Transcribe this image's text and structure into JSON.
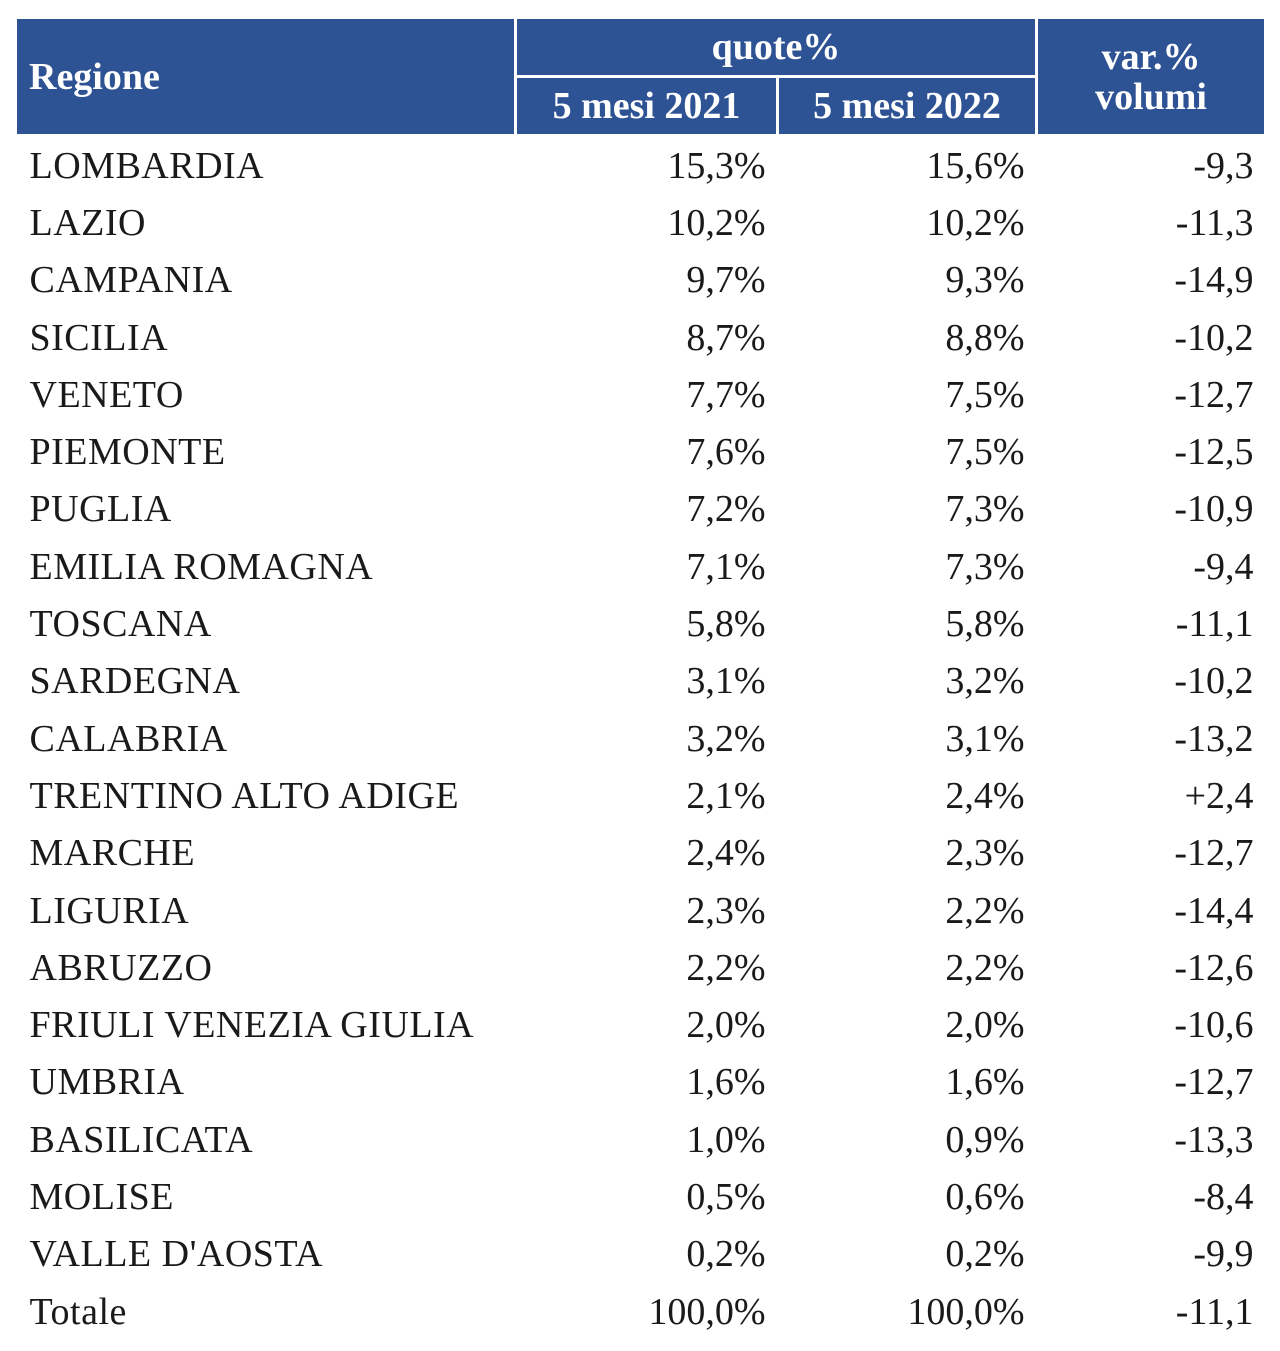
{
  "header": {
    "region_label": "Regione",
    "quote_group_label": "quote%",
    "col_2021_label": "5 mesi 2021",
    "col_2022_label": "5 mesi 2022",
    "var_label_line1": "var.%",
    "var_label_line2": "volumi"
  },
  "colors": {
    "header_background": "#2e5394",
    "header_text": "#ffffff",
    "body_text": "#1a1a1a"
  },
  "rows": [
    {
      "region": "LOMBARDIA",
      "q2021": "15,3%",
      "q2022": "15,6%",
      "var": "-9,3"
    },
    {
      "region": "LAZIO",
      "q2021": "10,2%",
      "q2022": "10,2%",
      "var": "-11,3"
    },
    {
      "region": "CAMPANIA",
      "q2021": "9,7%",
      "q2022": "9,3%",
      "var": "-14,9"
    },
    {
      "region": "SICILIA",
      "q2021": "8,7%",
      "q2022": "8,8%",
      "var": "-10,2"
    },
    {
      "region": "VENETO",
      "q2021": "7,7%",
      "q2022": "7,5%",
      "var": "-12,7"
    },
    {
      "region": "PIEMONTE",
      "q2021": "7,6%",
      "q2022": "7,5%",
      "var": "-12,5"
    },
    {
      "region": "PUGLIA",
      "q2021": "7,2%",
      "q2022": "7,3%",
      "var": "-10,9"
    },
    {
      "region": "EMILIA ROMAGNA",
      "q2021": "7,1%",
      "q2022": "7,3%",
      "var": "-9,4"
    },
    {
      "region": "TOSCANA",
      "q2021": "5,8%",
      "q2022": "5,8%",
      "var": "-11,1"
    },
    {
      "region": "SARDEGNA",
      "q2021": "3,1%",
      "q2022": "3,2%",
      "var": "-10,2"
    },
    {
      "region": "CALABRIA",
      "q2021": "3,2%",
      "q2022": "3,1%",
      "var": "-13,2"
    },
    {
      "region": "TRENTINO ALTO ADIGE",
      "q2021": "2,1%",
      "q2022": "2,4%",
      "var": "+2,4"
    },
    {
      "region": "MARCHE",
      "q2021": "2,4%",
      "q2022": "2,3%",
      "var": "-12,7"
    },
    {
      "region": "LIGURIA",
      "q2021": "2,3%",
      "q2022": "2,2%",
      "var": "-14,4"
    },
    {
      "region": "ABRUZZO",
      "q2021": "2,2%",
      "q2022": "2,2%",
      "var": "-12,6"
    },
    {
      "region": "FRIULI VENEZIA GIULIA",
      "q2021": "2,0%",
      "q2022": "2,0%",
      "var": "-10,6"
    },
    {
      "region": "UMBRIA",
      "q2021": "1,6%",
      "q2022": "1,6%",
      "var": "-12,7"
    },
    {
      "region": "BASILICATA",
      "q2021": "1,0%",
      "q2022": "0,9%",
      "var": "-13,3"
    },
    {
      "region": "MOLISE",
      "q2021": "0,5%",
      "q2022": "0,6%",
      "var": "-8,4"
    },
    {
      "region": "VALLE D'AOSTA",
      "q2021": "0,2%",
      "q2022": "0,2%",
      "var": "-9,9"
    },
    {
      "region": "Totale",
      "q2021": "100,0%",
      "q2022": "100,0%",
      "var": "-11,1"
    }
  ]
}
